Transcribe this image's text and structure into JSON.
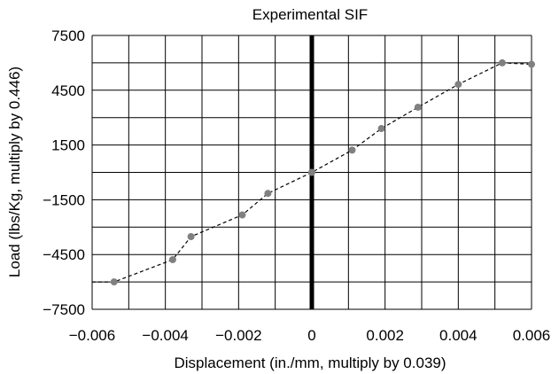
{
  "chart_data": {
    "type": "line",
    "title": "Experimental SIF",
    "xlabel": "Displacement (in./mm, multiply by 0.039)",
    "ylabel": "Load (lbs/Kg, multiply by 0.446)",
    "xlim": [
      -0.006,
      0.006
    ],
    "ylim": [
      -7500,
      7500
    ],
    "x_ticks": [
      -0.006,
      -0.004,
      -0.002,
      0,
      0.002,
      0.004,
      0.006
    ],
    "x_tick_labels": [
      "−0.006",
      "−0.004",
      "−0.002",
      "0",
      "0.002",
      "0.004",
      "0.006"
    ],
    "y_ticks": [
      7500,
      4500,
      1500,
      -1500,
      -4500,
      -7500
    ],
    "y_tick_labels": [
      "7500",
      "4500",
      "1500",
      "−1500",
      "−4500",
      "−7500"
    ],
    "grid": true,
    "grid_x_step": 0.001,
    "grid_y_step": 1500,
    "zero_line_x": 0,
    "series": [
      {
        "line_style": "dashed",
        "color": "#000000",
        "marker_color": "#808080",
        "points": [
          {
            "x": -0.0066,
            "y": -6000,
            "marker": false
          },
          {
            "x": -0.0054,
            "y": -6000,
            "marker": true
          },
          {
            "x": -0.0038,
            "y": -4780,
            "marker": true
          },
          {
            "x": -0.0033,
            "y": -3520,
            "marker": true
          },
          {
            "x": -0.0019,
            "y": -2330,
            "marker": true
          },
          {
            "x": -0.0012,
            "y": -1150,
            "marker": true
          },
          {
            "x": 0.0,
            "y": 0,
            "marker": true
          },
          {
            "x": 0.0011,
            "y": 1220,
            "marker": true
          },
          {
            "x": 0.0019,
            "y": 2400,
            "marker": true
          },
          {
            "x": 0.0029,
            "y": 3570,
            "marker": true
          },
          {
            "x": 0.004,
            "y": 4820,
            "marker": true
          },
          {
            "x": 0.0052,
            "y": 6000,
            "marker": true
          },
          {
            "x": 0.006,
            "y": 5920,
            "marker": true
          }
        ]
      }
    ]
  }
}
